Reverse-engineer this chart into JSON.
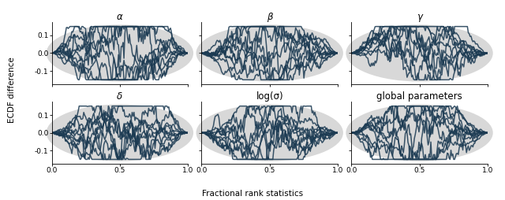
{
  "titles": [
    "α",
    "β",
    "γ",
    "δ",
    "log(σ)",
    "global parameters"
  ],
  "n_lines": 10,
  "n_points": 150,
  "xlim": [
    0.0,
    1.0
  ],
  "ylim": [
    -0.175,
    0.175
  ],
  "yticks": [
    -0.1,
    0.0,
    0.1
  ],
  "xticks": [
    0.0,
    0.5,
    1.0
  ],
  "line_color": "#1b3a52",
  "line_alpha": 0.85,
  "line_width": 1.1,
  "ellipse_color": "#d8d8d8",
  "ylabel": "ECDF difference",
  "xlabel": "Fractional rank statistics",
  "fig_width": 6.4,
  "fig_height": 2.54,
  "title_fontsize": 8.5,
  "label_fontsize": 7.5,
  "tick_fontsize": 6.5,
  "nrows": 2,
  "ncols": 3
}
